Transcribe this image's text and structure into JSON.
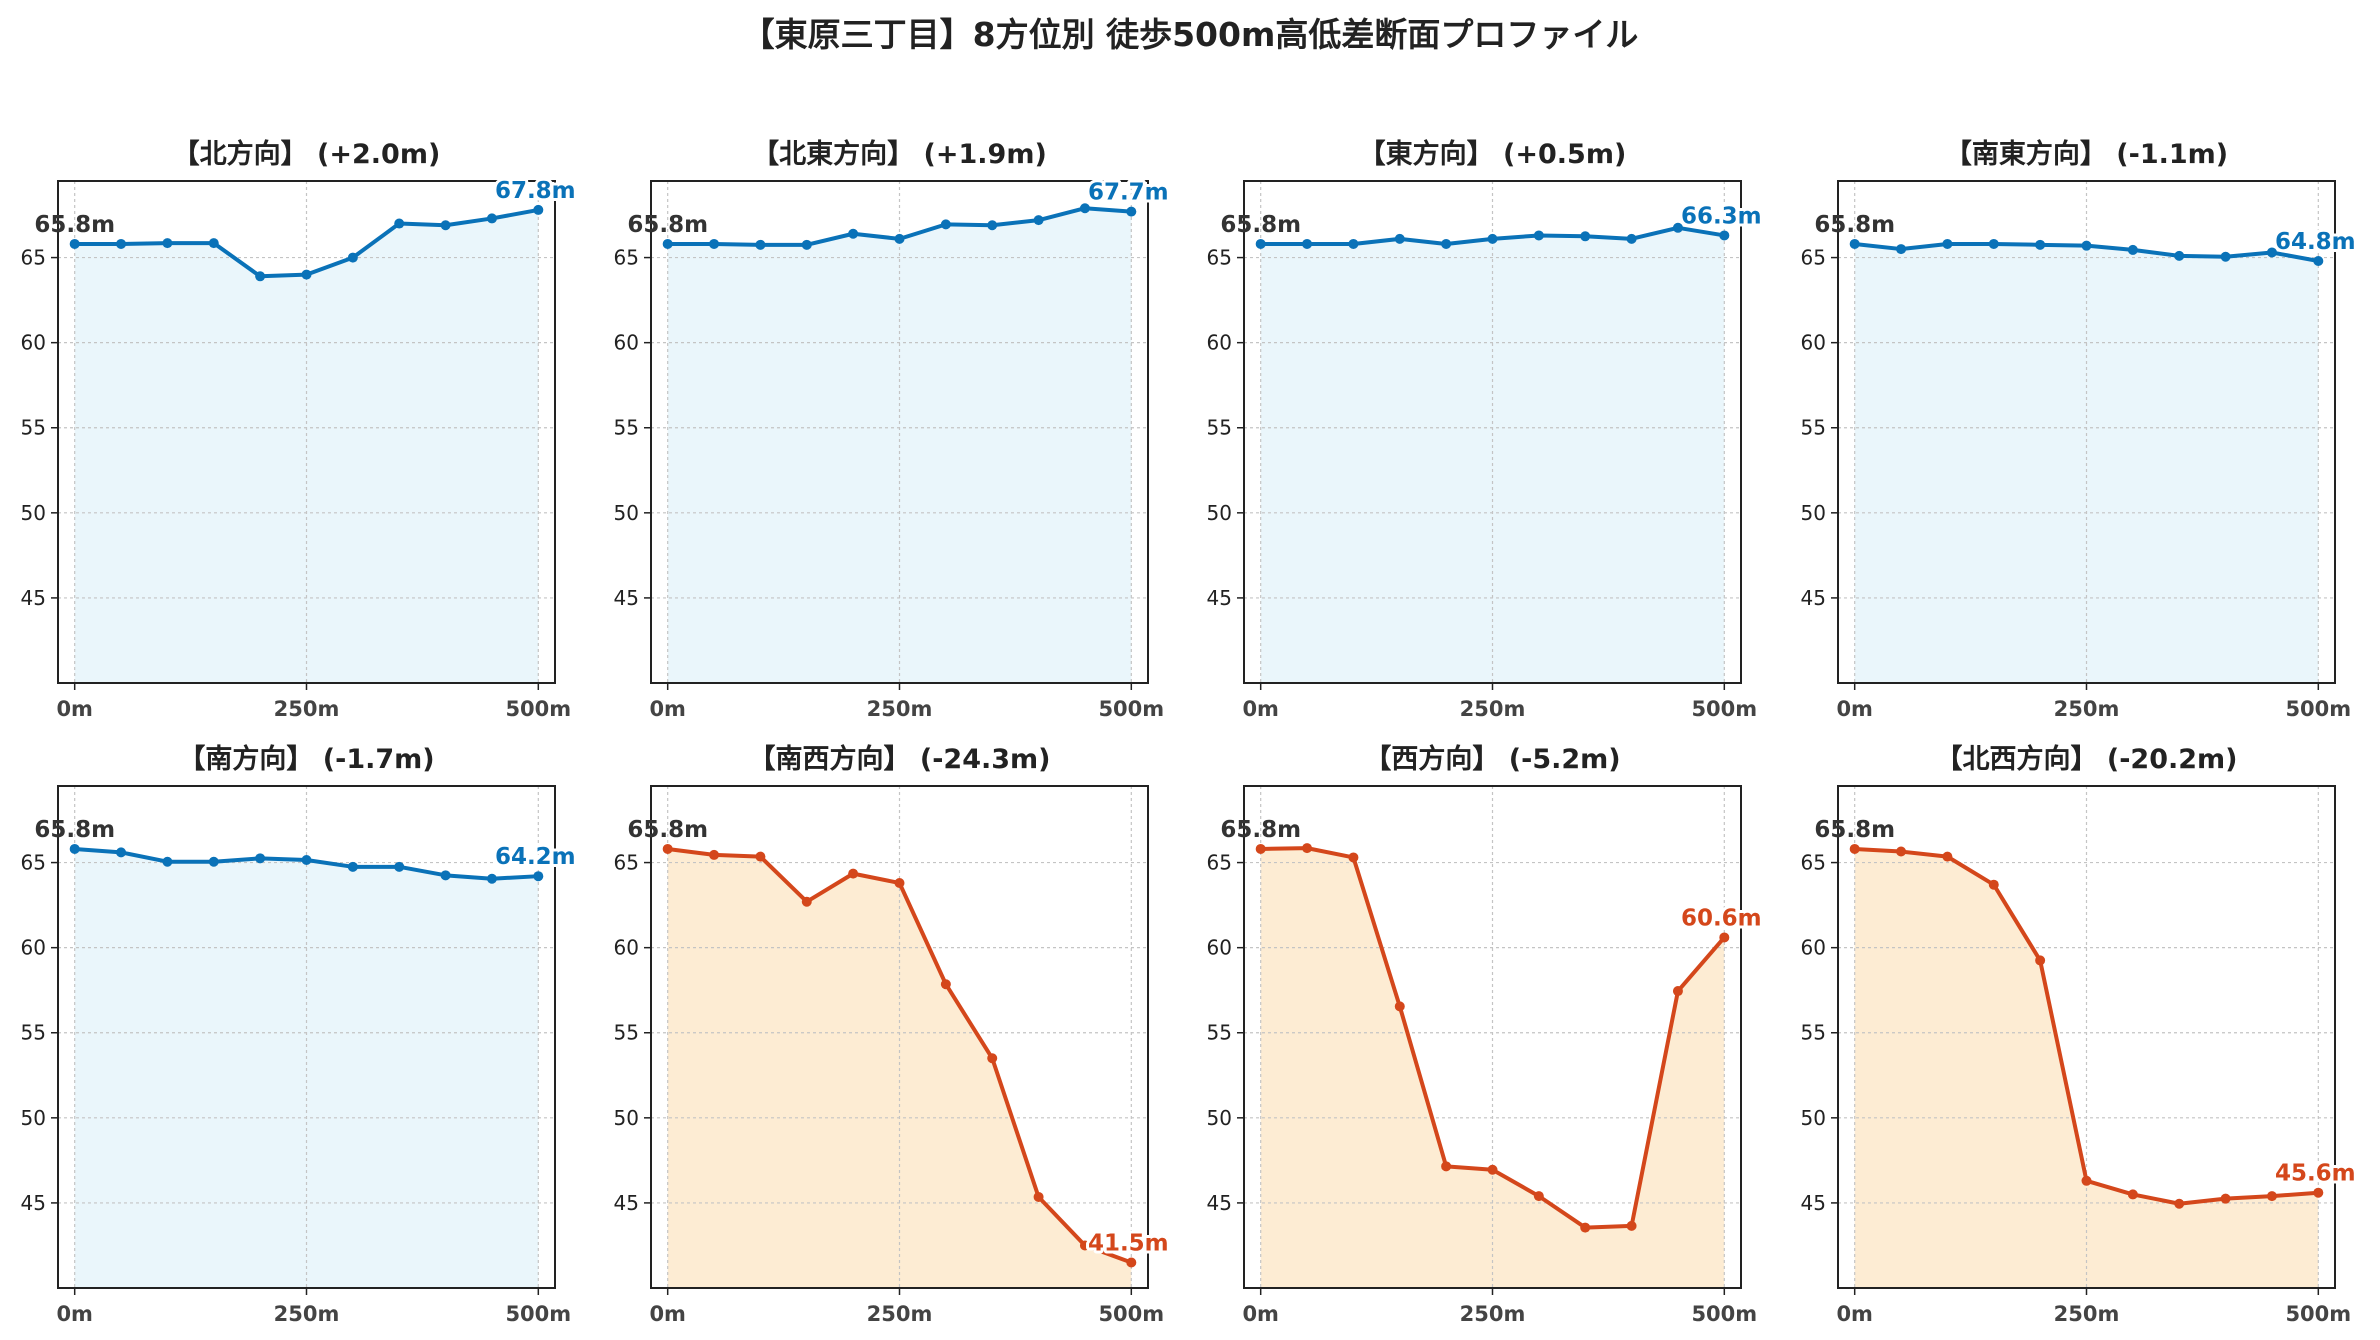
{
  "figure": {
    "title": "【東原三丁目】8方位別 徒歩500m高低差断面プロファイル"
  },
  "style": {
    "up_color": "#1f77b4",
    "up_line": "#0a72b8",
    "up_fill": "#eaf6fb",
    "down_color": "#d4471b",
    "down_fill": "#fdecd3",
    "start_label_color": "#333333"
  },
  "chart_data": [
    {
      "type": "area",
      "title": "【北方向】 (+2.0m)",
      "trend": "up",
      "x": [
        0,
        50,
        100,
        150,
        200,
        250,
        300,
        350,
        400,
        450,
        500
      ],
      "values": [
        65.8,
        65.8,
        65.85,
        65.85,
        63.9,
        64.0,
        65.0,
        67.0,
        66.9,
        67.3,
        67.8
      ],
      "xticks": [
        "0m",
        "250m",
        "500m"
      ],
      "yticks": [
        45,
        50,
        55,
        60,
        65
      ],
      "ylim": [
        40,
        69.5
      ],
      "xlim": [
        -18,
        518
      ],
      "start_label": "65.8m",
      "end_label": "67.8m",
      "grid": true
    },
    {
      "type": "area",
      "title": "【北東方向】 (+1.9m)",
      "trend": "up",
      "x": [
        0,
        50,
        100,
        150,
        200,
        250,
        300,
        350,
        400,
        450,
        500
      ],
      "values": [
        65.8,
        65.8,
        65.75,
        65.75,
        66.4,
        66.1,
        66.95,
        66.9,
        67.2,
        67.9,
        67.7
      ],
      "xticks": [
        "0m",
        "250m",
        "500m"
      ],
      "yticks": [
        45,
        50,
        55,
        60,
        65
      ],
      "ylim": [
        40,
        69.5
      ],
      "xlim": [
        -18,
        518
      ],
      "start_label": "65.8m",
      "end_label": "67.7m",
      "grid": true
    },
    {
      "type": "area",
      "title": "【東方向】 (+0.5m)",
      "trend": "up",
      "x": [
        0,
        50,
        100,
        150,
        200,
        250,
        300,
        350,
        400,
        450,
        500
      ],
      "values": [
        65.8,
        65.8,
        65.8,
        66.1,
        65.8,
        66.1,
        66.3,
        66.25,
        66.1,
        66.75,
        66.3
      ],
      "xticks": [
        "0m",
        "250m",
        "500m"
      ],
      "yticks": [
        45,
        50,
        55,
        60,
        65
      ],
      "ylim": [
        40,
        69.5
      ],
      "xlim": [
        -18,
        518
      ],
      "start_label": "65.8m",
      "end_label": "66.3m",
      "grid": true
    },
    {
      "type": "area",
      "title": "【南東方向】 (-1.1m)",
      "trend": "up",
      "x": [
        0,
        50,
        100,
        150,
        200,
        250,
        300,
        350,
        400,
        450,
        500
      ],
      "values": [
        65.8,
        65.5,
        65.8,
        65.8,
        65.75,
        65.7,
        65.45,
        65.1,
        65.05,
        65.3,
        64.8
      ],
      "xticks": [
        "0m",
        "250m",
        "500m"
      ],
      "yticks": [
        45,
        50,
        55,
        60,
        65
      ],
      "ylim": [
        40,
        69.5
      ],
      "xlim": [
        -18,
        518
      ],
      "start_label": "65.8m",
      "end_label": "64.8m",
      "grid": true
    },
    {
      "type": "area",
      "title": "【南方向】 (-1.7m)",
      "trend": "up",
      "x": [
        0,
        50,
        100,
        150,
        200,
        250,
        300,
        350,
        400,
        450,
        500
      ],
      "values": [
        65.8,
        65.6,
        65.05,
        65.05,
        65.25,
        65.15,
        64.75,
        64.75,
        64.25,
        64.05,
        64.2
      ],
      "xticks": [
        "0m",
        "250m",
        "500m"
      ],
      "yticks": [
        45,
        50,
        55,
        60,
        65
      ],
      "ylim": [
        40,
        69.5
      ],
      "xlim": [
        -18,
        518
      ],
      "start_label": "65.8m",
      "end_label": "64.2m",
      "grid": true
    },
    {
      "type": "area",
      "title": "【南西方向】 (-24.3m)",
      "trend": "down",
      "x": [
        0,
        50,
        100,
        150,
        200,
        250,
        300,
        350,
        400,
        450,
        500
      ],
      "values": [
        65.8,
        65.45,
        65.35,
        62.7,
        64.35,
        63.8,
        57.85,
        53.5,
        45.35,
        42.5,
        41.5
      ],
      "xticks": [
        "0m",
        "250m",
        "500m"
      ],
      "yticks": [
        45,
        50,
        55,
        60,
        65
      ],
      "ylim": [
        40,
        69.5
      ],
      "xlim": [
        -18,
        518
      ],
      "start_label": "65.8m",
      "end_label": "41.5m",
      "grid": true
    },
    {
      "type": "area",
      "title": "【西方向】 (-5.2m)",
      "trend": "down",
      "x": [
        0,
        50,
        100,
        150,
        200,
        250,
        300,
        350,
        400,
        450,
        500
      ],
      "values": [
        65.8,
        65.85,
        65.3,
        56.55,
        47.15,
        46.95,
        45.4,
        43.55,
        43.65,
        57.45,
        60.6
      ],
      "xticks": [
        "0m",
        "250m",
        "500m"
      ],
      "yticks": [
        45,
        50,
        55,
        60,
        65
      ],
      "ylim": [
        40,
        69.5
      ],
      "xlim": [
        -18,
        518
      ],
      "start_label": "65.8m",
      "end_label": "60.6m",
      "grid": true
    },
    {
      "type": "area",
      "title": "【北西方向】 (-20.2m)",
      "trend": "down",
      "x": [
        0,
        50,
        100,
        150,
        200,
        250,
        300,
        350,
        400,
        450,
        500
      ],
      "values": [
        65.8,
        65.65,
        65.35,
        63.7,
        59.25,
        46.3,
        45.5,
        44.95,
        45.25,
        45.4,
        45.6
      ],
      "xticks": [
        "0m",
        "250m",
        "500m"
      ],
      "yticks": [
        45,
        50,
        55,
        60,
        65
      ],
      "ylim": [
        40,
        69.5
      ],
      "xlim": [
        -18,
        518
      ],
      "start_label": "65.8m",
      "end_label": "45.6m",
      "grid": true
    }
  ]
}
